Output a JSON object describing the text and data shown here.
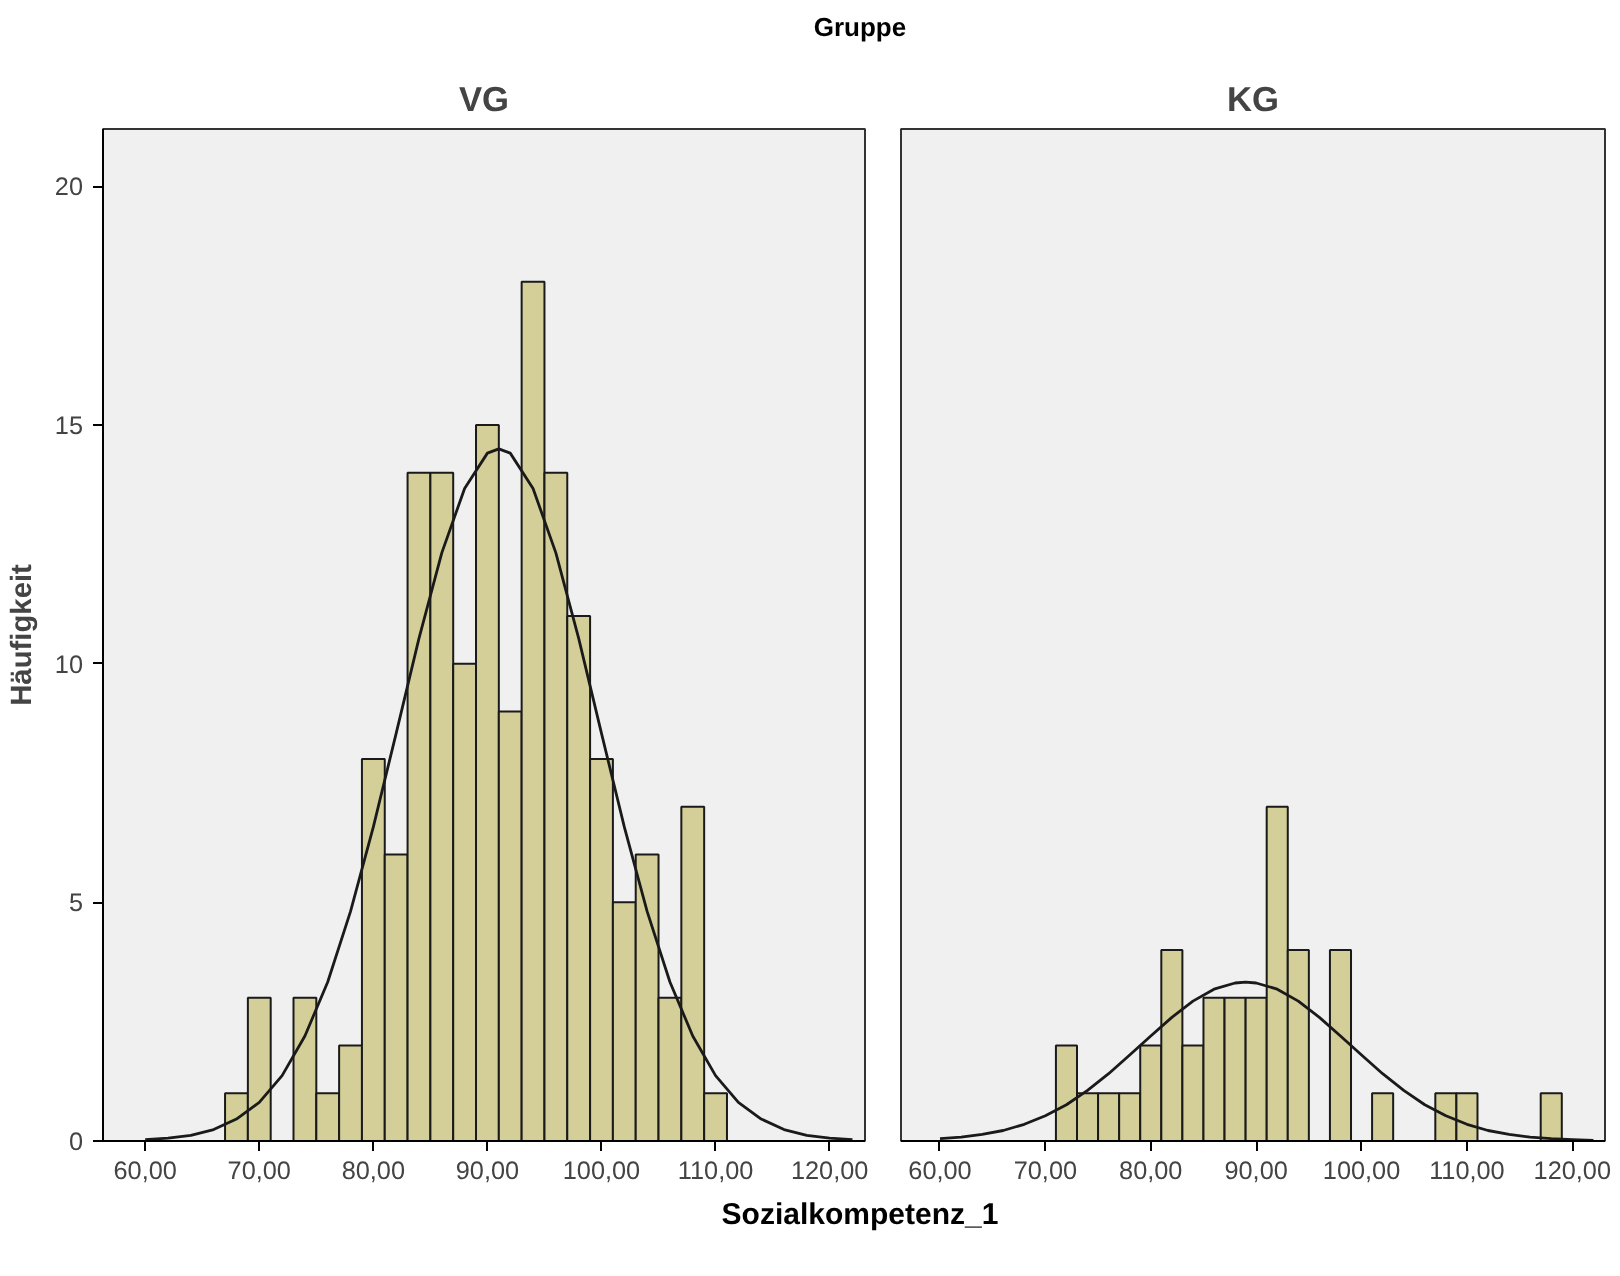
{
  "chart_data": [
    {
      "type": "histogram",
      "title": "Gruppe",
      "subtitle": "VG",
      "xlabel": "Sozialkompetenz_1",
      "ylabel": "Häufigkeit",
      "xlim": [
        56.3,
        123.1
      ],
      "ylim": [
        0,
        21.2
      ],
      "xticks": [
        {
          "value": 60,
          "label": "60,00"
        },
        {
          "value": 70,
          "label": "70,00"
        },
        {
          "value": 80,
          "label": "80,00"
        },
        {
          "value": 90,
          "label": "90,00"
        },
        {
          "value": 100,
          "label": "100,00"
        },
        {
          "value": 110,
          "label": "110,00"
        },
        {
          "value": 120,
          "label": "120,00"
        }
      ],
      "yticks": [
        0,
        5,
        10,
        15,
        20
      ],
      "grid": false,
      "series": [
        {
          "color": "#d4cf98",
          "bins": [
            67,
            69,
            71,
            73,
            75,
            77,
            79,
            81,
            83,
            85,
            87,
            89,
            91,
            93,
            95,
            97,
            99,
            101,
            103,
            105,
            107,
            109,
            111
          ],
          "values": [
            1,
            3,
            0,
            3,
            1,
            2,
            8,
            6,
            14,
            14,
            10,
            15,
            9,
            18,
            14,
            11,
            8,
            5,
            6,
            3,
            7,
            1
          ]
        },
        {
          "type": "line",
          "color": "#1a1a1a",
          "x": [
            60,
            62,
            64,
            66,
            68,
            70,
            72,
            74,
            76,
            78,
            80,
            82,
            84,
            86,
            88,
            90,
            91,
            92,
            94,
            96,
            98,
            100,
            102,
            104,
            106,
            108,
            110,
            112,
            114,
            116,
            118,
            120,
            122
          ],
          "values": [
            0.03,
            0.06,
            0.12,
            0.24,
            0.46,
            0.81,
            1.37,
            2.2,
            3.33,
            4.81,
            6.58,
            8.54,
            10.53,
            12.32,
            13.67,
            14.41,
            14.5,
            14.41,
            13.67,
            12.32,
            10.53,
            8.54,
            6.58,
            4.81,
            3.33,
            2.2,
            1.37,
            0.81,
            0.46,
            0.24,
            0.12,
            0.06,
            0.03
          ]
        }
      ]
    },
    {
      "type": "histogram",
      "subtitle": "KG",
      "tick_labels": "x",
      "xlim": [
        56.3,
        123.1
      ],
      "ylim": [
        0,
        21.2
      ],
      "xticks": [
        {
          "value": 60,
          "label": "60,00"
        },
        {
          "value": 70,
          "label": "70,00"
        },
        {
          "value": 80,
          "label": "80,00"
        },
        {
          "value": 90,
          "label": "90,00"
        },
        {
          "value": 100,
          "label": "100,00"
        },
        {
          "value": 110,
          "label": "110,00"
        },
        {
          "value": 120,
          "label": "120,00"
        }
      ],
      "yticks": [
        0,
        5,
        10,
        15,
        20
      ],
      "grid": false,
      "series": [
        {
          "color": "#d4cf98",
          "bins": [
            71,
            73,
            75,
            77,
            79,
            81,
            83,
            85,
            87,
            89,
            91,
            93,
            95,
            97,
            99,
            101,
            103,
            105,
            107,
            109,
            111,
            113,
            115,
            117,
            119
          ],
          "values": [
            2,
            1,
            1,
            1,
            2,
            4,
            2,
            3,
            3,
            3,
            7,
            4,
            0,
            4,
            0,
            1,
            0,
            0,
            1,
            1,
            0,
            0,
            0,
            1
          ]
        },
        {
          "type": "line",
          "color": "#1a1a1a",
          "x": [
            60,
            62,
            64,
            66,
            68,
            70,
            72,
            74,
            76,
            78,
            80,
            82,
            84,
            86,
            88,
            89,
            90,
            92,
            94,
            96,
            98,
            100,
            102,
            104,
            106,
            108,
            110,
            112,
            114,
            116,
            118,
            120,
            122
          ],
          "values": [
            0.05,
            0.08,
            0.14,
            0.22,
            0.35,
            0.53,
            0.76,
            1.06,
            1.41,
            1.8,
            2.2,
            2.59,
            2.93,
            3.18,
            3.31,
            3.33,
            3.31,
            3.18,
            2.93,
            2.59,
            2.2,
            1.8,
            1.41,
            1.06,
            0.76,
            0.53,
            0.35,
            0.22,
            0.14,
            0.08,
            0.05,
            0.03,
            0.01
          ]
        }
      ]
    }
  ]
}
